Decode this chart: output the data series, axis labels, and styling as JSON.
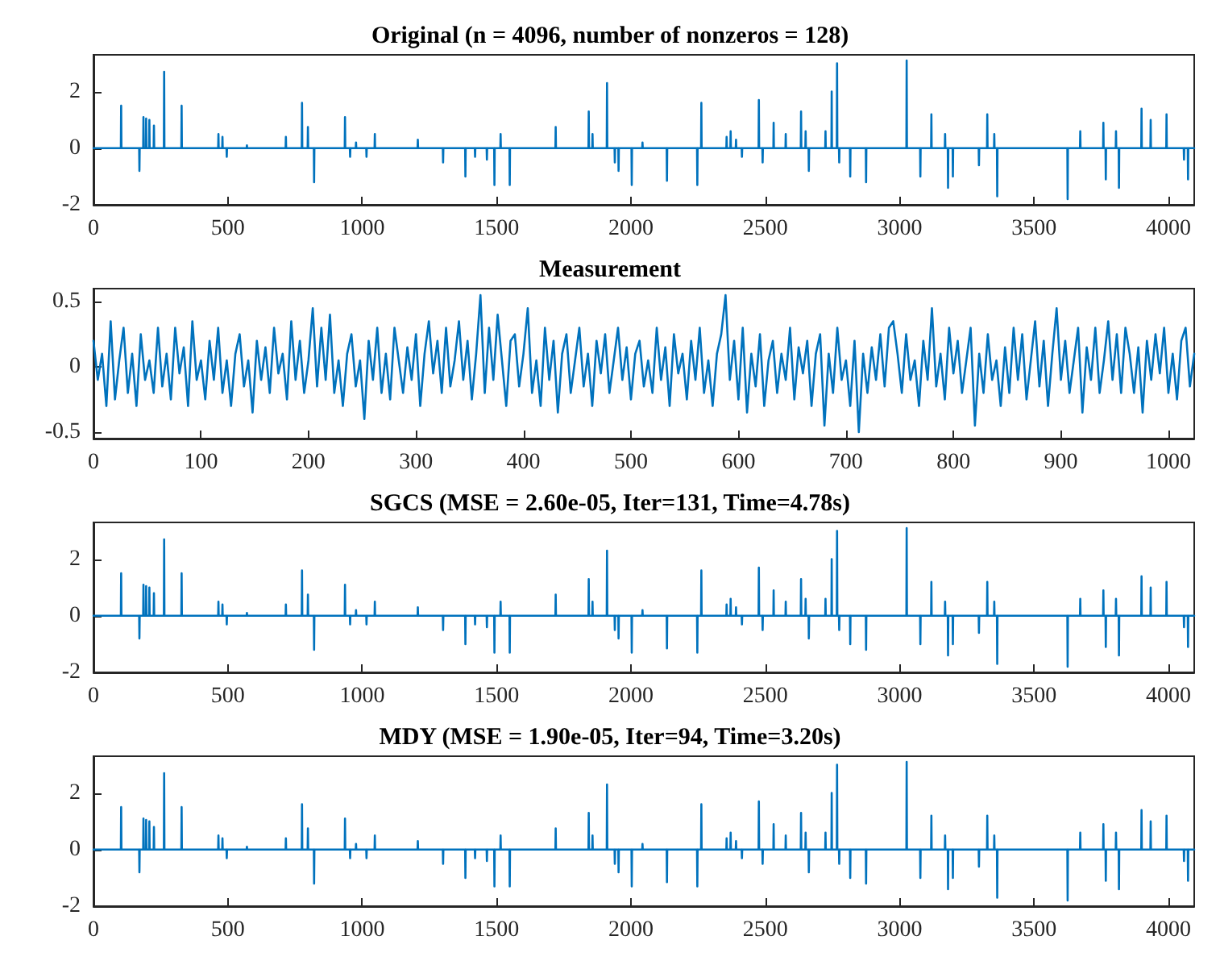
{
  "chart_data": [
    {
      "type": "line",
      "title": "Original (n = 4096, number of nonzeros = 128)",
      "color": "#0072bd",
      "grid": false,
      "marker": "none",
      "xlim": [
        0,
        4096
      ],
      "xticks": [
        0,
        500,
        1000,
        1500,
        2000,
        2500,
        3000,
        3500,
        4000
      ],
      "ylim": [
        -2,
        3.3
      ],
      "yticks": [
        -2,
        0,
        2
      ],
      "x": [
        0,
        102,
        103,
        104,
        170,
        171,
        172,
        185,
        186,
        187,
        195,
        196,
        197,
        207,
        208,
        209,
        224,
        225,
        226,
        262,
        263,
        264,
        327,
        328,
        329,
        464,
        465,
        466,
        479,
        480,
        481,
        495,
        496,
        497,
        570,
        571,
        572,
        715,
        716,
        717,
        775,
        776,
        777,
        797,
        798,
        799,
        820,
        821,
        822,
        935,
        936,
        937,
        954,
        955,
        956,
        976,
        977,
        978,
        1015,
        1016,
        1017,
        1046,
        1047,
        1048,
        1206,
        1207,
        1208,
        1300,
        1301,
        1302,
        1383,
        1384,
        1385,
        1419,
        1420,
        1421,
        1463,
        1464,
        1465,
        1491,
        1492,
        1493,
        1514,
        1515,
        1516,
        1548,
        1549,
        1550,
        1719,
        1720,
        1721,
        1842,
        1843,
        1844,
        1856,
        1857,
        1858,
        1910,
        1911,
        1912,
        1939,
        1940,
        1941,
        1953,
        1954,
        1955,
        2002,
        2003,
        2004,
        2042,
        2043,
        2044,
        2133,
        2134,
        2135,
        2246,
        2247,
        2248,
        2261,
        2262,
        2263,
        2355,
        2356,
        2357,
        2370,
        2371,
        2372,
        2390,
        2391,
        2392,
        2412,
        2413,
        2414,
        2475,
        2476,
        2477,
        2489,
        2490,
        2491,
        2530,
        2531,
        2532,
        2575,
        2576,
        2577,
        2632,
        2633,
        2634,
        2649,
        2650,
        2651,
        2661,
        2662,
        2663,
        2723,
        2724,
        2725,
        2746,
        2747,
        2748,
        2766,
        2767,
        2768,
        2774,
        2775,
        2776,
        2815,
        2816,
        2817,
        2874,
        2875,
        2876,
        3025,
        3026,
        3027,
        3076,
        3077,
        3078,
        3117,
        3118,
        3119,
        3168,
        3169,
        3170,
        3179,
        3180,
        3181,
        3197,
        3198,
        3199,
        3294,
        3295,
        3296,
        3325,
        3326,
        3327,
        3351,
        3352,
        3353,
        3362,
        3363,
        3364,
        3624,
        3625,
        3626,
        3671,
        3672,
        3673,
        3757,
        3758,
        3759,
        3766,
        3767,
        3768,
        3804,
        3805,
        3806,
        3815,
        3816,
        3817,
        3899,
        3900,
        3901,
        3933,
        3934,
        3935,
        3992,
        3993,
        3994,
        4057,
        4058,
        4059,
        4072,
        4073,
        4074,
        4096
      ],
      "values": [
        0,
        0,
        1.5,
        0,
        0,
        -0.8,
        0,
        0,
        1.1,
        0,
        0,
        1.05,
        0,
        0,
        1.0,
        0,
        0,
        0.8,
        0,
        0,
        2.7,
        0,
        0,
        1.5,
        0,
        0,
        0.5,
        0,
        0,
        0.4,
        0,
        0,
        -0.3,
        0,
        0,
        0.1,
        0,
        0,
        0.4,
        0,
        0,
        1.6,
        0,
        0,
        0.75,
        0,
        0,
        -1.2,
        0,
        0,
        1.1,
        0,
        0,
        -0.3,
        0,
        0,
        0.2,
        0,
        0,
        -0.3,
        0,
        0,
        0.5,
        0,
        0,
        0.3,
        0,
        0,
        -0.5,
        0,
        0,
        -1.0,
        0,
        0,
        -0.3,
        0,
        0,
        -0.4,
        0,
        0,
        -1.3,
        0,
        0,
        0.5,
        0,
        0,
        -1.3,
        0,
        0,
        0.75,
        0,
        0,
        1.3,
        0,
        0,
        0.5,
        0,
        0,
        2.3,
        0,
        0,
        -0.5,
        0,
        0,
        -0.8,
        0,
        0,
        -1.3,
        0,
        0,
        0.2,
        0,
        0,
        -1.15,
        0,
        0,
        -1.3,
        0,
        0,
        1.6,
        0,
        0,
        0.4,
        0,
        0,
        0.6,
        0,
        0,
        0.3,
        0,
        0,
        -0.3,
        0,
        0,
        1.7,
        0,
        0,
        -0.5,
        0,
        0,
        0.9,
        0,
        0,
        0.5,
        0,
        0,
        1.3,
        0,
        0,
        0.6,
        0,
        0,
        -0.8,
        0,
        0,
        0.6,
        0,
        0,
        2.0,
        0,
        0,
        3.0,
        0,
        0,
        -0.5,
        0,
        0,
        -1.0,
        0,
        0,
        -1.2,
        0,
        0,
        3.1,
        0,
        0,
        -1.0,
        0,
        0,
        1.2,
        0,
        0,
        0.5,
        0,
        0,
        -1.4,
        0,
        0,
        -1.0,
        0,
        0,
        -0.6,
        0,
        0,
        1.2,
        0,
        0,
        0.5,
        0,
        0,
        -1.7,
        0,
        0,
        -1.8,
        0,
        0,
        0.6,
        0,
        0,
        0.9,
        0,
        0,
        -1.1,
        0,
        0,
        0.6,
        0,
        0,
        -1.4,
        0,
        0,
        1.4,
        0,
        0,
        1.0,
        0,
        0,
        1.2,
        0,
        0,
        -0.4,
        0,
        0,
        -1.1,
        0,
        0
      ]
    },
    {
      "type": "line",
      "title": "Measurement",
      "color": "#0072bd",
      "grid": false,
      "marker": "none",
      "xlim": [
        0,
        1024
      ],
      "xticks": [
        0,
        100,
        200,
        300,
        400,
        500,
        600,
        700,
        800,
        900,
        1000
      ],
      "ylim": [
        -0.55,
        0.6
      ],
      "yticks": [
        -0.5,
        0,
        0.5
      ],
      "x": [
        0,
        4,
        8,
        12,
        16,
        20,
        24,
        28,
        32,
        36,
        40,
        44,
        48,
        52,
        56,
        60,
        64,
        68,
        72,
        76,
        80,
        84,
        88,
        92,
        96,
        100,
        104,
        108,
        112,
        116,
        120,
        124,
        128,
        132,
        136,
        140,
        144,
        148,
        152,
        156,
        160,
        164,
        168,
        172,
        176,
        180,
        184,
        188,
        192,
        196,
        200,
        204,
        208,
        212,
        216,
        220,
        224,
        228,
        232,
        236,
        240,
        244,
        248,
        252,
        256,
        260,
        264,
        268,
        272,
        276,
        280,
        284,
        288,
        292,
        296,
        300,
        304,
        308,
        312,
        316,
        320,
        324,
        328,
        332,
        336,
        340,
        344,
        348,
        352,
        356,
        360,
        364,
        368,
        372,
        376,
        380,
        384,
        388,
        392,
        396,
        400,
        404,
        408,
        412,
        416,
        420,
        424,
        428,
        432,
        436,
        440,
        444,
        448,
        452,
        456,
        460,
        464,
        468,
        472,
        476,
        480,
        484,
        488,
        492,
        496,
        500,
        504,
        508,
        512,
        516,
        520,
        524,
        528,
        532,
        536,
        540,
        544,
        548,
        552,
        556,
        560,
        564,
        568,
        572,
        576,
        580,
        584,
        588,
        592,
        596,
        600,
        604,
        608,
        612,
        616,
        620,
        624,
        628,
        632,
        636,
        640,
        644,
        648,
        652,
        656,
        660,
        664,
        668,
        672,
        676,
        680,
        684,
        688,
        692,
        696,
        700,
        704,
        708,
        712,
        716,
        720,
        724,
        728,
        732,
        736,
        740,
        744,
        748,
        752,
        756,
        760,
        764,
        768,
        772,
        776,
        780,
        784,
        788,
        792,
        796,
        800,
        804,
        808,
        812,
        816,
        820,
        824,
        828,
        832,
        836,
        840,
        844,
        848,
        852,
        856,
        860,
        864,
        868,
        872,
        876,
        880,
        884,
        888,
        892,
        896,
        900,
        904,
        908,
        912,
        916,
        920,
        924,
        928,
        932,
        936,
        940,
        944,
        948,
        952,
        956,
        960,
        964,
        968,
        972,
        976,
        980,
        984,
        988,
        992,
        996,
        1000,
        1004,
        1008,
        1012,
        1016,
        1020,
        1024
      ],
      "values": [
        0.2,
        -0.1,
        0.1,
        -0.3,
        0.35,
        -0.25,
        0.05,
        0.3,
        -0.2,
        0.1,
        -0.3,
        0.25,
        -0.1,
        0.05,
        -0.2,
        0.3,
        -0.15,
        0.1,
        -0.25,
        0.3,
        -0.05,
        0.15,
        -0.3,
        0.35,
        -0.1,
        0.05,
        -0.25,
        0.2,
        -0.1,
        0.3,
        -0.2,
        0.05,
        -0.3,
        0.1,
        0.25,
        -0.15,
        0.05,
        -0.35,
        0.2,
        -0.1,
        0.15,
        -0.2,
        0.3,
        -0.05,
        0.1,
        -0.25,
        0.35,
        -0.1,
        0.2,
        -0.2,
        0.05,
        0.45,
        -0.15,
        0.3,
        -0.1,
        0.4,
        -0.2,
        0.05,
        -0.3,
        0.1,
        0.25,
        -0.15,
        0.05,
        -0.4,
        0.2,
        -0.1,
        0.3,
        -0.2,
        0.1,
        -0.25,
        0.3,
        0.05,
        -0.2,
        0.15,
        -0.1,
        0.25,
        -0.3,
        0.1,
        0.35,
        -0.05,
        0.2,
        -0.2,
        0.3,
        -0.15,
        0.05,
        0.35,
        -0.1,
        0.2,
        -0.25,
        0.1,
        0.55,
        -0.2,
        0.3,
        -0.1,
        0.4,
        0.05,
        -0.3,
        0.2,
        0.25,
        -0.15,
        0.1,
        0.45,
        -0.2,
        0.05,
        -0.3,
        0.3,
        -0.1,
        0.2,
        -0.35,
        0.1,
        0.25,
        -0.2,
        0.05,
        0.3,
        -0.15,
        0.1,
        -0.3,
        0.2,
        -0.05,
        0.25,
        -0.2,
        0.05,
        0.3,
        -0.1,
        0.15,
        -0.25,
        0.1,
        0.2,
        -0.15,
        0.05,
        -0.2,
        0.3,
        -0.1,
        0.15,
        -0.3,
        0.25,
        -0.05,
        0.1,
        -0.25,
        0.2,
        -0.1,
        0.3,
        -0.2,
        0.05,
        -0.3,
        0.1,
        0.25,
        0.55,
        -0.1,
        0.2,
        -0.25,
        0.3,
        -0.35,
        0.1,
        -0.15,
        0.25,
        -0.3,
        0.05,
        0.2,
        -0.2,
        0.1,
        -0.1,
        0.3,
        -0.25,
        0.15,
        -0.05,
        0.2,
        -0.3,
        0.1,
        0.25,
        -0.45,
        0.1,
        -0.2,
        0.3,
        -0.1,
        0.05,
        -0.3,
        0.2,
        -0.5,
        0.1,
        -0.2,
        0.15,
        -0.1,
        0.25,
        -0.15,
        0.3,
        0.35,
        0.1,
        -0.2,
        0.25,
        -0.1,
        0.05,
        -0.3,
        0.2,
        -0.1,
        0.45,
        -0.15,
        0.1,
        -0.25,
        0.3,
        -0.05,
        0.2,
        -0.2,
        0.05,
        0.3,
        -0.45,
        0.1,
        -0.2,
        0.25,
        -0.1,
        0.05,
        -0.3,
        0.15,
        -0.2,
        0.3,
        -0.1,
        0.25,
        -0.25,
        0.05,
        0.35,
        -0.15,
        0.2,
        -0.3,
        0.1,
        0.45,
        -0.1,
        0.2,
        -0.2,
        0.05,
        0.3,
        -0.35,
        0.15,
        -0.1,
        0.3,
        -0.2,
        0.05,
        0.35,
        -0.1,
        0.25,
        -0.2,
        0.3,
        0.1,
        -0.2,
        0.15,
        -0.35,
        0.2,
        -0.1,
        0.25,
        -0.05,
        0.3,
        -0.2,
        0.1,
        -0.25,
        0.2,
        0.3,
        -0.15,
        0.1
      ]
    },
    {
      "type": "line",
      "title": "SGCS (MSE = 2.60e-05, Iter=131, Time=4.78s)",
      "color": "#0072bd",
      "grid": false,
      "marker": "none",
      "xlim": [
        0,
        4096
      ],
      "xticks": [
        0,
        500,
        1000,
        1500,
        2000,
        2500,
        3000,
        3500,
        4000
      ],
      "ylim": [
        -2,
        3.3
      ],
      "yticks": [
        -2,
        0,
        2
      ],
      "x": [
        0,
        102,
        103,
        104,
        170,
        171,
        172,
        185,
        186,
        187,
        195,
        196,
        197,
        207,
        208,
        209,
        224,
        225,
        226,
        262,
        263,
        264,
        327,
        328,
        329,
        464,
        465,
        466,
        479,
        480,
        481,
        495,
        496,
        497,
        570,
        571,
        572,
        715,
        716,
        717,
        775,
        776,
        777,
        797,
        798,
        799,
        820,
        821,
        822,
        935,
        936,
        937,
        954,
        955,
        956,
        976,
        977,
        978,
        1015,
        1016,
        1017,
        1046,
        1047,
        1048,
        1206,
        1207,
        1208,
        1300,
        1301,
        1302,
        1383,
        1384,
        1385,
        1419,
        1420,
        1421,
        1463,
        1464,
        1465,
        1491,
        1492,
        1493,
        1514,
        1515,
        1516,
        1548,
        1549,
        1550,
        1719,
        1720,
        1721,
        1842,
        1843,
        1844,
        1856,
        1857,
        1858,
        1910,
        1911,
        1912,
        1939,
        1940,
        1941,
        1953,
        1954,
        1955,
        2002,
        2003,
        2004,
        2042,
        2043,
        2044,
        2133,
        2134,
        2135,
        2246,
        2247,
        2248,
        2261,
        2262,
        2263,
        2355,
        2356,
        2357,
        2370,
        2371,
        2372,
        2390,
        2391,
        2392,
        2412,
        2413,
        2414,
        2475,
        2476,
        2477,
        2489,
        2490,
        2491,
        2530,
        2531,
        2532,
        2575,
        2576,
        2577,
        2632,
        2633,
        2634,
        2649,
        2650,
        2651,
        2661,
        2662,
        2663,
        2723,
        2724,
        2725,
        2746,
        2747,
        2748,
        2766,
        2767,
        2768,
        2774,
        2775,
        2776,
        2815,
        2816,
        2817,
        2874,
        2875,
        2876,
        3025,
        3026,
        3027,
        3076,
        3077,
        3078,
        3117,
        3118,
        3119,
        3168,
        3169,
        3170,
        3179,
        3180,
        3181,
        3197,
        3198,
        3199,
        3294,
        3295,
        3296,
        3325,
        3326,
        3327,
        3351,
        3352,
        3353,
        3362,
        3363,
        3364,
        3624,
        3625,
        3626,
        3671,
        3672,
        3673,
        3757,
        3758,
        3759,
        3766,
        3767,
        3768,
        3804,
        3805,
        3806,
        3815,
        3816,
        3817,
        3899,
        3900,
        3901,
        3933,
        3934,
        3935,
        3992,
        3993,
        3994,
        4057,
        4058,
        4059,
        4072,
        4073,
        4074,
        4096
      ],
      "values": [
        0,
        0,
        1.5,
        0,
        0,
        -0.8,
        0,
        0,
        1.1,
        0,
        0,
        1.05,
        0,
        0,
        1.0,
        0,
        0,
        0.8,
        0,
        0,
        2.7,
        0,
        0,
        1.5,
        0,
        0,
        0.5,
        0,
        0,
        0.4,
        0,
        0,
        -0.3,
        0,
        0,
        0.1,
        0,
        0,
        0.4,
        0,
        0,
        1.6,
        0,
        0,
        0.75,
        0,
        0,
        -1.2,
        0,
        0,
        1.1,
        0,
        0,
        -0.3,
        0,
        0,
        0.2,
        0,
        0,
        -0.3,
        0,
        0,
        0.5,
        0,
        0,
        0.3,
        0,
        0,
        -0.5,
        0,
        0,
        -1.0,
        0,
        0,
        -0.3,
        0,
        0,
        -0.4,
        0,
        0,
        -1.3,
        0,
        0,
        0.5,
        0,
        0,
        -1.3,
        0,
        0,
        0.75,
        0,
        0,
        1.3,
        0,
        0,
        0.5,
        0,
        0,
        2.3,
        0,
        0,
        -0.5,
        0,
        0,
        -0.8,
        0,
        0,
        -1.3,
        0,
        0,
        0.2,
        0,
        0,
        -1.15,
        0,
        0,
        -1.3,
        0,
        0,
        1.6,
        0,
        0,
        0.4,
        0,
        0,
        0.6,
        0,
        0,
        0.3,
        0,
        0,
        -0.3,
        0,
        0,
        1.7,
        0,
        0,
        -0.5,
        0,
        0,
        0.9,
        0,
        0,
        0.5,
        0,
        0,
        1.3,
        0,
        0,
        0.6,
        0,
        0,
        -0.8,
        0,
        0,
        0.6,
        0,
        0,
        2.0,
        0,
        0,
        3.0,
        0,
        0,
        -0.5,
        0,
        0,
        -1.0,
        0,
        0,
        -1.2,
        0,
        0,
        3.1,
        0,
        0,
        -1.0,
        0,
        0,
        1.2,
        0,
        0,
        0.5,
        0,
        0,
        -1.4,
        0,
        0,
        -1.0,
        0,
        0,
        -0.6,
        0,
        0,
        1.2,
        0,
        0,
        0.5,
        0,
        0,
        -1.7,
        0,
        0,
        -1.8,
        0,
        0,
        0.6,
        0,
        0,
        0.9,
        0,
        0,
        -1.1,
        0,
        0,
        0.6,
        0,
        0,
        -1.4,
        0,
        0,
        1.4,
        0,
        0,
        1.0,
        0,
        0,
        1.2,
        0,
        0,
        -0.4,
        0,
        0,
        -1.1,
        0,
        0
      ]
    },
    {
      "type": "line",
      "title": "MDY (MSE = 1.90e-05, Iter=94, Time=3.20s)",
      "color": "#0072bd",
      "grid": false,
      "marker": "none",
      "xlim": [
        0,
        4096
      ],
      "xticks": [
        0,
        500,
        1000,
        1500,
        2000,
        2500,
        3000,
        3500,
        4000
      ],
      "ylim": [
        -2,
        3.3
      ],
      "yticks": [
        -2,
        0,
        2
      ],
      "x": [
        0,
        102,
        103,
        104,
        170,
        171,
        172,
        185,
        186,
        187,
        195,
        196,
        197,
        207,
        208,
        209,
        224,
        225,
        226,
        262,
        263,
        264,
        327,
        328,
        329,
        464,
        465,
        466,
        479,
        480,
        481,
        495,
        496,
        497,
        570,
        571,
        572,
        715,
        716,
        717,
        775,
        776,
        777,
        797,
        798,
        799,
        820,
        821,
        822,
        935,
        936,
        937,
        954,
        955,
        956,
        976,
        977,
        978,
        1015,
        1016,
        1017,
        1046,
        1047,
        1048,
        1206,
        1207,
        1208,
        1300,
        1301,
        1302,
        1383,
        1384,
        1385,
        1419,
        1420,
        1421,
        1463,
        1464,
        1465,
        1491,
        1492,
        1493,
        1514,
        1515,
        1516,
        1548,
        1549,
        1550,
        1719,
        1720,
        1721,
        1842,
        1843,
        1844,
        1856,
        1857,
        1858,
        1910,
        1911,
        1912,
        1939,
        1940,
        1941,
        1953,
        1954,
        1955,
        2002,
        2003,
        2004,
        2042,
        2043,
        2044,
        2133,
        2134,
        2135,
        2246,
        2247,
        2248,
        2261,
        2262,
        2263,
        2355,
        2356,
        2357,
        2370,
        2371,
        2372,
        2390,
        2391,
        2392,
        2412,
        2413,
        2414,
        2475,
        2476,
        2477,
        2489,
        2490,
        2491,
        2530,
        2531,
        2532,
        2575,
        2576,
        2577,
        2632,
        2633,
        2634,
        2649,
        2650,
        2651,
        2661,
        2662,
        2663,
        2723,
        2724,
        2725,
        2746,
        2747,
        2748,
        2766,
        2767,
        2768,
        2774,
        2775,
        2776,
        2815,
        2816,
        2817,
        2874,
        2875,
        2876,
        3025,
        3026,
        3027,
        3076,
        3077,
        3078,
        3117,
        3118,
        3119,
        3168,
        3169,
        3170,
        3179,
        3180,
        3181,
        3197,
        3198,
        3199,
        3294,
        3295,
        3296,
        3325,
        3326,
        3327,
        3351,
        3352,
        3353,
        3362,
        3363,
        3364,
        3624,
        3625,
        3626,
        3671,
        3672,
        3673,
        3757,
        3758,
        3759,
        3766,
        3767,
        3768,
        3804,
        3805,
        3806,
        3815,
        3816,
        3817,
        3899,
        3900,
        3901,
        3933,
        3934,
        3935,
        3992,
        3993,
        3994,
        4057,
        4058,
        4059,
        4072,
        4073,
        4074,
        4096
      ],
      "values": [
        0,
        0,
        1.5,
        0,
        0,
        -0.8,
        0,
        0,
        1.1,
        0,
        0,
        1.05,
        0,
        0,
        1.0,
        0,
        0,
        0.8,
        0,
        0,
        2.7,
        0,
        0,
        1.5,
        0,
        0,
        0.5,
        0,
        0,
        0.4,
        0,
        0,
        -0.3,
        0,
        0,
        0.1,
        0,
        0,
        0.4,
        0,
        0,
        1.6,
        0,
        0,
        0.75,
        0,
        0,
        -1.2,
        0,
        0,
        1.1,
        0,
        0,
        -0.3,
        0,
        0,
        0.2,
        0,
        0,
        -0.3,
        0,
        0,
        0.5,
        0,
        0,
        0.3,
        0,
        0,
        -0.5,
        0,
        0,
        -1.0,
        0,
        0,
        -0.3,
        0,
        0,
        -0.4,
        0,
        0,
        -1.3,
        0,
        0,
        0.5,
        0,
        0,
        -1.3,
        0,
        0,
        0.75,
        0,
        0,
        1.3,
        0,
        0,
        0.5,
        0,
        0,
        2.3,
        0,
        0,
        -0.5,
        0,
        0,
        -0.8,
        0,
        0,
        -1.3,
        0,
        0,
        0.2,
        0,
        0,
        -1.15,
        0,
        0,
        -1.3,
        0,
        0,
        1.6,
        0,
        0,
        0.4,
        0,
        0,
        0.6,
        0,
        0,
        0.3,
        0,
        0,
        -0.3,
        0,
        0,
        1.7,
        0,
        0,
        -0.5,
        0,
        0,
        0.9,
        0,
        0,
        0.5,
        0,
        0,
        1.3,
        0,
        0,
        0.6,
        0,
        0,
        -0.8,
        0,
        0,
        0.6,
        0,
        0,
        2.0,
        0,
        0,
        3.0,
        0,
        0,
        -0.5,
        0,
        0,
        -1.0,
        0,
        0,
        -1.2,
        0,
        0,
        3.1,
        0,
        0,
        -1.0,
        0,
        0,
        1.2,
        0,
        0,
        0.5,
        0,
        0,
        -1.4,
        0,
        0,
        -1.0,
        0,
        0,
        -0.6,
        0,
        0,
        1.2,
        0,
        0,
        0.5,
        0,
        0,
        -1.7,
        0,
        0,
        -1.8,
        0,
        0,
        0.6,
        0,
        0,
        0.9,
        0,
        0,
        -1.1,
        0,
        0,
        0.6,
        0,
        0,
        -1.4,
        0,
        0,
        1.4,
        0,
        0,
        1.0,
        0,
        0,
        1.2,
        0,
        0,
        -0.4,
        0,
        0,
        -1.1,
        0,
        0
      ]
    }
  ]
}
